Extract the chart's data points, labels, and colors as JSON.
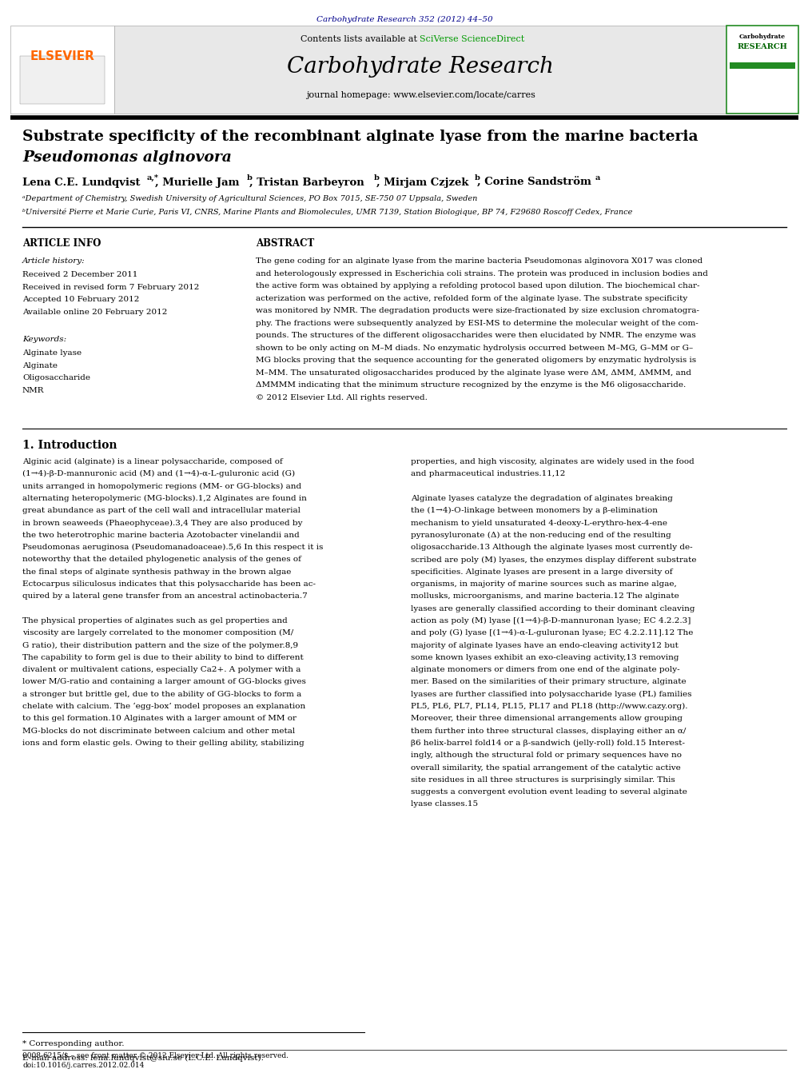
{
  "page_width": 9.92,
  "page_height": 13.23,
  "bg_color": "#ffffff",
  "top_citation": "Carbohydrate Research 352 (2012) 44–50",
  "top_citation_color": "#00008B",
  "header_bg": "#e8e8e8",
  "elsevier_color": "#FF6600",
  "sciverse_color": "#009900",
  "title_line1": "Substrate specificity of the recombinant alginate lyase from the marine bacteria",
  "title_line2": "Pseudomonas alginovora",
  "affil_a": "ᵃDepartment of Chemistry, Swedish University of Agricultural Sciences, PO Box 7015, SE-750 07 Uppsala, Sweden",
  "affil_b": "ᵇUniversité Pierre et Marie Curie, Paris VI, CNRS, Marine Plants and Biomolecules, UMR 7139, Station Biologique, BP 74, F29680 Roscoff Cedex, France",
  "article_info_header": "ARTICLE INFO",
  "abstract_header": "ABSTRACT",
  "article_history_title": "Article history:",
  "article_history": "Received 2 December 2011\nReceived in revised form 7 February 2012\nAccepted 10 February 2012\nAvailable online 20 February 2012",
  "keywords_title": "Keywords:",
  "keywords": "Alginate lyase\nAlginate\nOligosaccharide\nNMR",
  "intro_title": "1. Introduction",
  "footnote_corresponding": "* Corresponding author.",
  "footnote_email": "E-mail address: lena.lundqvist@slu.se (L.C.E. Lundqvist).",
  "footer_issn": "0008-6215/$ – see front matter © 2012 Elsevier Ltd. All rights reserved.",
  "footer_doi": "doi:10.1016/j.carres.2012.02.014",
  "col1_lines": [
    "Alginic acid (alginate) is a linear polysaccharide, composed of",
    "(1→4)-β-D-mannuronic acid (M) and (1→4)-α-L-guluronic acid (G)",
    "units arranged in homopolymeric regions (MM- or GG-blocks) and",
    "alternating heteropolymeric (MG-blocks).1,2 Alginates are found in",
    "great abundance as part of the cell wall and intracellular material",
    "in brown seaweeds (Phaeophyceae).3,4 They are also produced by",
    "the two heterotrophic marine bacteria Azotobacter vinelandii and",
    "Pseudomonas aeruginosa (Pseudomanadoaceae).5,6 In this respect it is",
    "noteworthy that the detailed phylogenetic analysis of the genes of",
    "the final steps of alginate synthesis pathway in the brown algae",
    "Ectocarpus siliculosus indicates that this polysaccharide has been ac-",
    "quired by a lateral gene transfer from an ancestral actinobacteria.7",
    "",
    "The physical properties of alginates such as gel properties and",
    "viscosity are largely correlated to the monomer composition (M/",
    "G ratio), their distribution pattern and the size of the polymer.8,9",
    "The capability to form gel is due to their ability to bind to different",
    "divalent or multivalent cations, especially Ca2+. A polymer with a",
    "lower M/G-ratio and containing a larger amount of GG-blocks gives",
    "a stronger but brittle gel, due to the ability of GG-blocks to form a",
    "chelate with calcium. The ‘egg-box’ model proposes an explanation",
    "to this gel formation.10 Alginates with a larger amount of MM or",
    "MG-blocks do not discriminate between calcium and other metal",
    "ions and form elastic gels. Owing to their gelling ability, stabilizing"
  ],
  "col2_lines": [
    "properties, and high viscosity, alginates are widely used in the food",
    "and pharmaceutical industries.11,12",
    "",
    "Alginate lyases catalyze the degradation of alginates breaking",
    "the (1→4)-O-linkage between monomers by a β-elimination",
    "mechanism to yield unsaturated 4-deoxy-L-erythro-hex-4-ene",
    "pyranosyluronate (Δ) at the non-reducing end of the resulting",
    "oligosaccharide.13 Although the alginate lyases most currently de-",
    "scribed are poly (M) lyases, the enzymes display different substrate",
    "specificities. Alginate lyases are present in a large diversity of",
    "organisms, in majority of marine sources such as marine algae,",
    "mollusks, microorganisms, and marine bacteria.12 The alginate",
    "lyases are generally classified according to their dominant cleaving",
    "action as poly (M) lyase [(1→4)-β-D-mannuronan lyase; EC 4.2.2.3]",
    "and poly (G) lyase [(1→4)-α-L-guluronan lyase; EC 4.2.2.11].12 The",
    "majority of alginate lyases have an endo-cleaving activity12 but",
    "some known lyases exhibit an exo-cleaving activity,13 removing",
    "alginate monomers or dimers from one end of the alginate poly-",
    "mer. Based on the similarities of their primary structure, alginate",
    "lyases are further classified into polysaccharide lyase (PL) families",
    "PL5, PL6, PL7, PL14, PL15, PL17 and PL18 (http://www.cazy.org).",
    "Moreover, their three dimensional arrangements allow grouping",
    "them further into three structural classes, displaying either an α/",
    "β6 helix-barrel fold14 or a β-sandwich (jelly-roll) fold.15 Interest-",
    "ingly, although the structural fold or primary sequences have no",
    "overall similarity, the spatial arrangement of the catalytic active",
    "site residues in all three structures is surprisingly similar. This",
    "suggests a convergent evolution event leading to several alginate",
    "lyase classes.15"
  ],
  "abstract_lines": [
    "The gene coding for an alginate lyase from the marine bacteria Pseudomonas alginovora X017 was cloned",
    "and heterologously expressed in Escherichia coli strains. The protein was produced in inclusion bodies and",
    "the active form was obtained by applying a refolding protocol based upon dilution. The biochemical char-",
    "acterization was performed on the active, refolded form of the alginate lyase. The substrate specificity",
    "was monitored by NMR. The degradation products were size-fractionated by size exclusion chromatogra-",
    "phy. The fractions were subsequently analyzed by ESI-MS to determine the molecular weight of the com-",
    "pounds. The structures of the different oligosaccharides were then elucidated by NMR. The enzyme was",
    "shown to be only acting on M–M diads. No enzymatic hydrolysis occurred between M–MG, G–MM or G–",
    "MG blocks proving that the sequence accounting for the generated oligomers by enzymatic hydrolysis is",
    "M–MM. The unsaturated oligosaccharides produced by the alginate lyase were ΔM, ΔMM, ΔMMM, and",
    "ΔMMMM indicating that the minimum structure recognized by the enzyme is the M6 oligosaccharide.",
    "© 2012 Elsevier Ltd. All rights reserved."
  ]
}
